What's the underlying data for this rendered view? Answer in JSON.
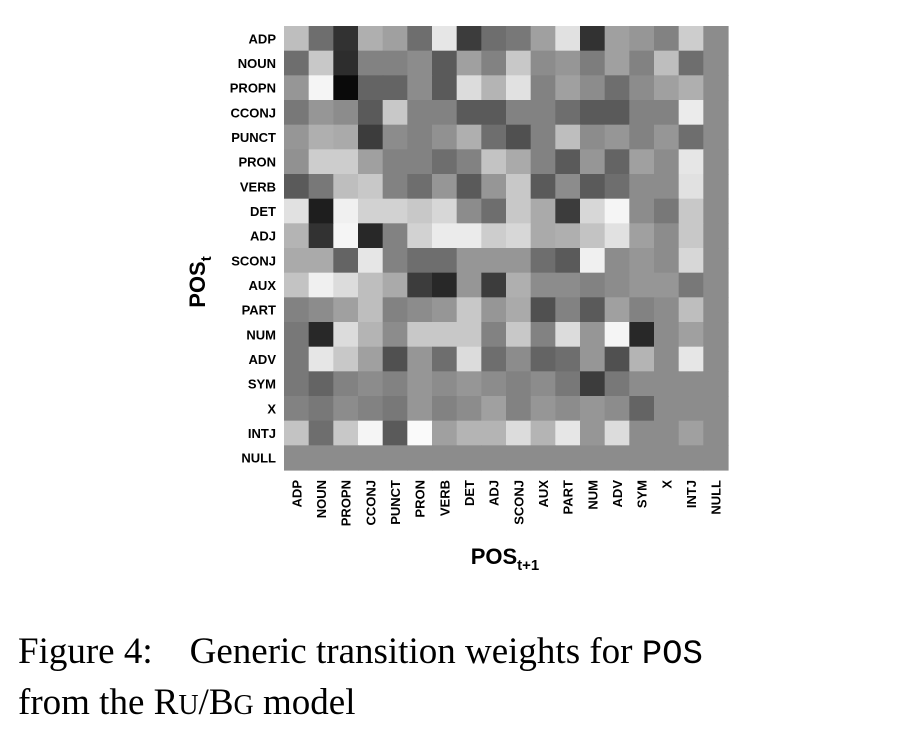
{
  "chart_data": {
    "type": "heatmap",
    "title": "",
    "ylabel": {
      "main": "POS",
      "sub": "t"
    },
    "xlabel": {
      "main": "POS",
      "sub": "t+1"
    },
    "rows": [
      "ADP",
      "NOUN",
      "PROPN",
      "CCONJ",
      "PUNCT",
      "PRON",
      "VERB",
      "DET",
      "ADJ",
      "SCONJ",
      "AUX",
      "PART",
      "NUM",
      "ADV",
      "SYM",
      "X",
      "INTJ",
      "NULL"
    ],
    "cols": [
      "ADP",
      "NOUN",
      "PROPN",
      "CCONJ",
      "PUNCT",
      "PRON",
      "VERB",
      "DET",
      "ADJ",
      "SCONJ",
      "AUX",
      "PART",
      "NUM",
      "ADV",
      "SYM",
      "X",
      "INTJ",
      "NULL"
    ],
    "value_scale": "grayscale intensity, 0 = black, 255 = white (no colorbar shown)",
    "values": [
      [
        190,
        110,
        50,
        175,
        160,
        110,
        230,
        60,
        110,
        120,
        160,
        225,
        50,
        160,
        150,
        130,
        205,
        140
      ],
      [
        110,
        200,
        45,
        130,
        130,
        140,
        90,
        160,
        130,
        200,
        140,
        150,
        125,
        160,
        130,
        190,
        110,
        140
      ],
      [
        150,
        245,
        10,
        100,
        100,
        140,
        90,
        220,
        180,
        225,
        130,
        160,
        140,
        110,
        140,
        160,
        175,
        140
      ],
      [
        120,
        150,
        140,
        90,
        200,
        130,
        130,
        90,
        90,
        130,
        130,
        110,
        90,
        90,
        130,
        130,
        235,
        140
      ],
      [
        150,
        175,
        170,
        60,
        140,
        130,
        145,
        175,
        110,
        80,
        130,
        190,
        140,
        150,
        130,
        150,
        110,
        140
      ],
      [
        145,
        205,
        205,
        160,
        130,
        130,
        110,
        130,
        195,
        170,
        130,
        90,
        150,
        100,
        160,
        140,
        230,
        140
      ],
      [
        90,
        120,
        190,
        200,
        130,
        110,
        150,
        90,
        150,
        200,
        90,
        140,
        90,
        110,
        140,
        140,
        225,
        140
      ],
      [
        225,
        30,
        240,
        210,
        210,
        200,
        215,
        140,
        110,
        200,
        170,
        60,
        215,
        245,
        140,
        120,
        200,
        140
      ],
      [
        180,
        50,
        245,
        40,
        130,
        210,
        235,
        235,
        205,
        215,
        170,
        175,
        195,
        225,
        160,
        140,
        200,
        140
      ],
      [
        170,
        170,
        100,
        230,
        130,
        110,
        110,
        150,
        150,
        150,
        110,
        90,
        240,
        140,
        150,
        140,
        215,
        140
      ],
      [
        195,
        240,
        220,
        190,
        170,
        60,
        40,
        150,
        60,
        175,
        140,
        140,
        130,
        140,
        150,
        150,
        120,
        140
      ],
      [
        130,
        140,
        160,
        190,
        130,
        140,
        150,
        200,
        150,
        170,
        80,
        130,
        90,
        160,
        130,
        140,
        190,
        140
      ],
      [
        120,
        40,
        220,
        180,
        140,
        200,
        200,
        200,
        130,
        200,
        130,
        220,
        150,
        245,
        40,
        140,
        160,
        140
      ],
      [
        120,
        230,
        200,
        160,
        80,
        150,
        110,
        220,
        110,
        140,
        100,
        110,
        150,
        80,
        180,
        140,
        230,
        140
      ],
      [
        120,
        100,
        130,
        140,
        130,
        150,
        140,
        150,
        140,
        130,
        140,
        120,
        60,
        120,
        140,
        140,
        140,
        140
      ],
      [
        130,
        120,
        140,
        130,
        120,
        150,
        130,
        140,
        160,
        130,
        150,
        140,
        150,
        140,
        100,
        140,
        140,
        140
      ],
      [
        195,
        110,
        200,
        245,
        90,
        250,
        160,
        180,
        180,
        220,
        180,
        230,
        150,
        220,
        140,
        140,
        160,
        140
      ],
      [
        140,
        140,
        140,
        140,
        140,
        140,
        140,
        140,
        140,
        140,
        140,
        140,
        140,
        140,
        140,
        140,
        140,
        140
      ]
    ]
  },
  "caption": {
    "figure_label": "Figure 4:",
    "text_before": "Generic transition weights for",
    "code_term": "POS",
    "line2_prefix": "from the",
    "model_part1_big": "R",
    "model_part1_small": "U",
    "model_sep": "/",
    "model_part2_big": "B",
    "model_part2_small": "G",
    "line2_suffix": "model"
  }
}
